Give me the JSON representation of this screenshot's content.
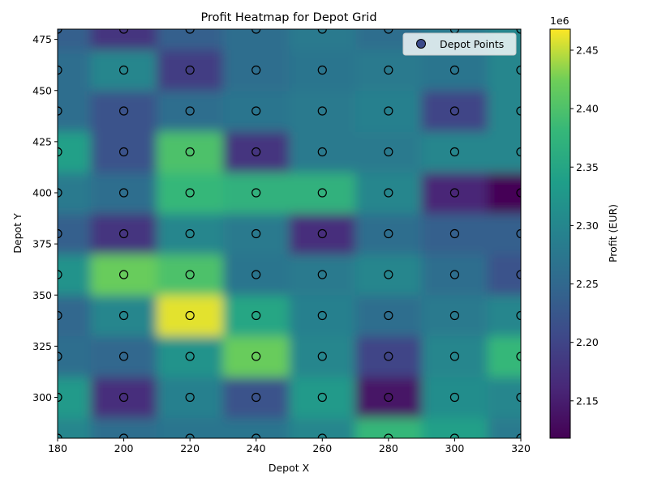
{
  "chart_data": {
    "type": "heatmap",
    "title": "Profit Heatmap for Depot Grid",
    "xlabel": "Depot X",
    "ylabel": "Depot Y",
    "xlim": [
      180,
      320
    ],
    "ylim": [
      280,
      480
    ],
    "x_ticks": [
      180,
      200,
      220,
      240,
      260,
      280,
      300,
      320
    ],
    "y_ticks": [
      300,
      325,
      350,
      375,
      400,
      425,
      450,
      475
    ],
    "grid": false,
    "colormap": "viridis",
    "colorbar": {
      "label": "Profit (EUR)",
      "exponent_label": "1e6",
      "range": [
        2118000,
        2468000
      ],
      "ticks": [
        "2.15",
        "2.20",
        "2.25",
        "2.30",
        "2.35",
        "2.40",
        "2.45"
      ],
      "tick_values": [
        2.15,
        2.2,
        2.25,
        2.3,
        2.35,
        2.4,
        2.45
      ]
    },
    "legend": {
      "position": "top-right",
      "entries": [
        "Depot Points"
      ]
    },
    "grid_x": [
      180,
      200,
      220,
      240,
      260,
      280,
      300,
      320
    ],
    "grid_y": [
      280,
      300,
      320,
      340,
      360,
      380,
      400,
      420,
      440,
      460,
      480
    ],
    "profit_millions": [
      [
        2.3,
        2.26,
        2.27,
        2.27,
        2.3,
        2.38,
        2.34,
        2.28
      ],
      [
        2.33,
        2.17,
        2.29,
        2.22,
        2.33,
        2.14,
        2.31,
        2.3
      ],
      [
        2.26,
        2.25,
        2.32,
        2.42,
        2.3,
        2.2,
        2.3,
        2.38
      ],
      [
        2.25,
        2.3,
        2.46,
        2.35,
        2.29,
        2.26,
        2.28,
        2.3
      ],
      [
        2.32,
        2.42,
        2.4,
        2.27,
        2.28,
        2.3,
        2.26,
        2.22
      ],
      [
        2.24,
        2.18,
        2.3,
        2.28,
        2.17,
        2.26,
        2.24,
        2.24
      ],
      [
        2.28,
        2.26,
        2.38,
        2.37,
        2.37,
        2.3,
        2.16,
        2.12
      ],
      [
        2.34,
        2.22,
        2.4,
        2.18,
        2.28,
        2.28,
        2.3,
        2.3
      ],
      [
        2.26,
        2.22,
        2.26,
        2.27,
        2.28,
        2.29,
        2.2,
        2.3
      ],
      [
        2.26,
        2.3,
        2.19,
        2.26,
        2.27,
        2.28,
        2.27,
        2.3
      ],
      [
        2.24,
        2.18,
        2.24,
        2.26,
        2.28,
        2.26,
        2.28,
        2.3
      ]
    ],
    "depot_points": {
      "x": [
        180,
        200,
        220,
        240,
        260,
        280,
        300,
        320
      ],
      "y": [
        280,
        300,
        320,
        340,
        360,
        380,
        400,
        420,
        440,
        460,
        480
      ]
    }
  }
}
